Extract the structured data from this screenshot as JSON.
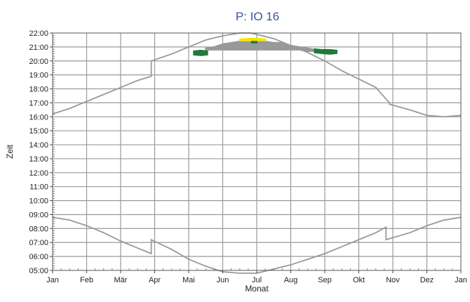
{
  "chart_data": {
    "type": "line",
    "title": "P: IO 16",
    "xlabel": "Monat",
    "ylabel": "Zeit",
    "x_tick_labels": [
      "Jan",
      "Feb",
      "Mär",
      "Apr",
      "Mai",
      "Jun",
      "Jul",
      "Aug",
      "Sep",
      "Okt",
      "Nov",
      "Dez",
      "Jan"
    ],
    "y_tick_labels": [
      "05:00",
      "06:00",
      "07:00",
      "08:00",
      "09:00",
      "10:00",
      "11:00",
      "12:00",
      "13:00",
      "14:00",
      "15:00",
      "16:00",
      "17:00",
      "18:00",
      "19:00",
      "20:00",
      "21:00",
      "22:00"
    ],
    "xlim": [
      0,
      12
    ],
    "ylim": [
      5,
      22
    ],
    "y_unit": "hours",
    "grid": true,
    "series": [
      {
        "color": "#999999",
        "x": [
          0,
          0.5,
          1.0,
          1.5,
          2.0,
          2.5,
          2.9,
          2.9,
          3.5,
          4.0,
          4.5,
          5.0,
          5.5,
          5.8,
          6.0,
          6.5,
          7.0,
          7.5,
          8.0,
          8.5,
          9.0,
          9.5,
          9.9,
          9.9,
          10.5,
          11.0,
          11.5,
          12.0
        ],
        "y": [
          16.2,
          16.6,
          17.1,
          17.6,
          18.1,
          18.6,
          18.9,
          20.0,
          20.5,
          21.0,
          21.5,
          21.8,
          22.0,
          22.0,
          21.9,
          21.6,
          21.1,
          20.6,
          20.0,
          19.3,
          18.7,
          18.1,
          17.0,
          16.9,
          16.5,
          16.1,
          16.0,
          16.1
        ]
      },
      {
        "color": "#999999",
        "x": [
          0,
          0.5,
          1.0,
          1.5,
          2.0,
          2.5,
          2.9,
          2.9,
          3.5,
          4.0,
          4.5,
          5.0,
          5.5,
          6.0,
          6.5,
          7.0,
          7.5,
          8.0,
          8.5,
          9.0,
          9.5,
          9.8,
          9.8,
          10.5,
          11.0,
          11.5,
          12.0
        ],
        "y": [
          8.8,
          8.6,
          8.2,
          7.7,
          7.1,
          6.6,
          6.2,
          7.2,
          6.5,
          5.8,
          5.3,
          4.9,
          4.8,
          4.8,
          5.1,
          5.4,
          5.8,
          6.2,
          6.7,
          7.2,
          7.7,
          8.1,
          7.2,
          7.7,
          8.2,
          8.6,
          8.8
        ]
      }
    ],
    "shadow_bands": [
      {
        "color": "#999999",
        "x": [
          4.5,
          4.75,
          5.0,
          5.25,
          5.5,
          5.75,
          6.0,
          6.25,
          6.5,
          6.75,
          7.0,
          7.25,
          7.5,
          7.75
        ],
        "low": [
          20.8,
          20.8,
          20.8,
          20.8,
          20.8,
          20.8,
          20.8,
          20.8,
          20.8,
          20.8,
          20.8,
          20.8,
          20.7,
          20.7
        ],
        "high": [
          20.9,
          21.0,
          21.2,
          21.3,
          21.4,
          21.4,
          21.5,
          21.4,
          21.3,
          21.3,
          21.1,
          21.0,
          20.9,
          20.8
        ]
      },
      {
        "color": "#f2e400",
        "x": [
          5.5,
          5.75,
          6.0,
          6.25
        ],
        "low": [
          21.45,
          21.45,
          21.45,
          21.45
        ],
        "high": [
          21.55,
          21.6,
          21.6,
          21.55
        ]
      },
      {
        "color": "#1e7a3a",
        "x": [
          4.15,
          4.35,
          4.55
        ],
        "low": [
          20.45,
          20.4,
          20.45
        ],
        "high": [
          20.7,
          20.75,
          20.7
        ]
      },
      {
        "color": "#1e7a3a",
        "x": [
          7.7,
          7.9,
          8.15,
          8.35
        ],
        "low": [
          20.6,
          20.55,
          20.5,
          20.55
        ],
        "high": [
          20.85,
          20.8,
          20.8,
          20.75
        ]
      },
      {
        "color": "#1e7a3a",
        "x": [
          5.85,
          6.0
        ],
        "low": [
          21.3,
          21.3
        ],
        "high": [
          21.38,
          21.38
        ]
      }
    ]
  }
}
